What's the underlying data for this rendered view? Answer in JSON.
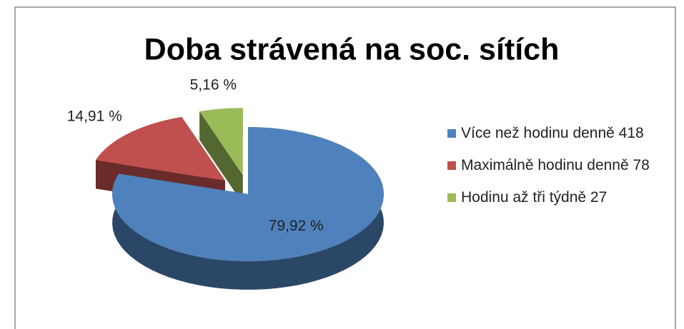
{
  "chart_data": {
    "type": "pie",
    "title": "Doba strávená na soc. sítích",
    "categories": [
      "Více než hodinu denně 418",
      "Maximálně hodinu denně 78",
      "Hodinu až tři týdně 27"
    ],
    "values": [
      79.92,
      14.91,
      5.16
    ],
    "value_labels": [
      "79,92 %",
      "14,91 %",
      "5,16 %"
    ],
    "colors": [
      "#4f81bd",
      "#c0504d",
      "#9bbb59"
    ],
    "legend": "right"
  }
}
